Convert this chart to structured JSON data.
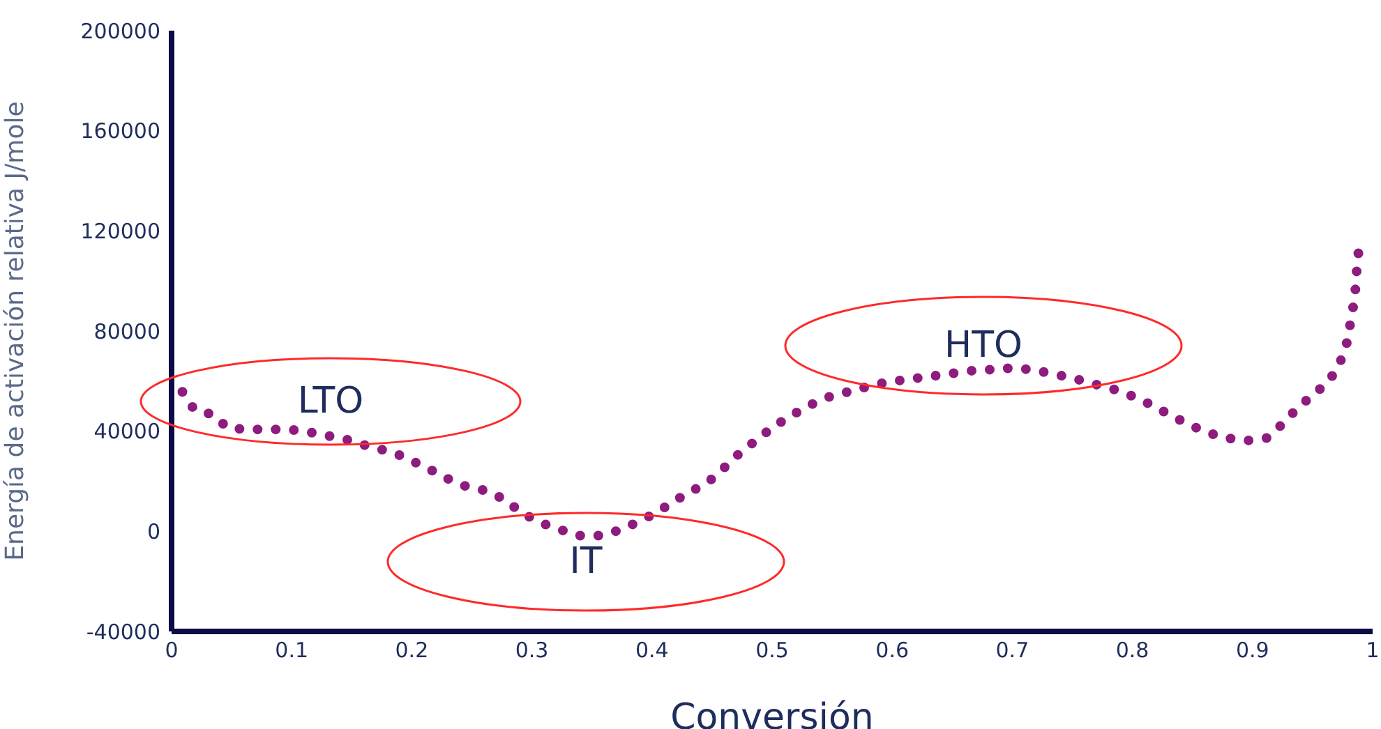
{
  "chart_data": {
    "type": "line",
    "xlabel": "Conversión",
    "ylabel": "Energía de activación relativa J/mole",
    "xlim": [
      0,
      1
    ],
    "xticks": [
      0,
      0.1,
      0.2,
      0.3,
      0.4,
      0.5,
      0.6,
      0.7,
      0.8,
      0.9,
      1
    ],
    "ylim": [
      -40000,
      200000
    ],
    "yticks": [
      -40000,
      0,
      40000,
      80000,
      120000,
      160000,
      200000
    ],
    "grid": false,
    "legend": false,
    "line_style": "dotted",
    "marker": "none",
    "series": [
      {
        "color": "#8e1b7e",
        "x": [
          0.009,
          0.019,
          0.034,
          0.047,
          0.064,
          0.082,
          0.098,
          0.116,
          0.133,
          0.15,
          0.167,
          0.184,
          0.199,
          0.214,
          0.229,
          0.246,
          0.262,
          0.277,
          0.292,
          0.308,
          0.324,
          0.339,
          0.357,
          0.374,
          0.389,
          0.405,
          0.419,
          0.434,
          0.449,
          0.462,
          0.474,
          0.488,
          0.501,
          0.516,
          0.53,
          0.546,
          0.563,
          0.58,
          0.596,
          0.613,
          0.63,
          0.648,
          0.664,
          0.682,
          0.699,
          0.717,
          0.733,
          0.75,
          0.767,
          0.784,
          0.8,
          0.815,
          0.83,
          0.846,
          0.862,
          0.878,
          0.895,
          0.912,
          0.925,
          0.937,
          0.949,
          0.963,
          0.972,
          0.978,
          0.981,
          0.984,
          0.986,
          0.987,
          0.989
        ],
        "values": [
          55700,
          48500,
          46700,
          41200,
          40700,
          40700,
          40700,
          39500,
          37900,
          36200,
          33400,
          31700,
          28400,
          25000,
          21200,
          17800,
          16200,
          12800,
          7200,
          3300,
          600,
          -1700,
          -1700,
          600,
          3900,
          7800,
          12300,
          16200,
          20600,
          26200,
          31700,
          36800,
          41800,
          46200,
          50100,
          53500,
          55700,
          57900,
          59600,
          60700,
          61800,
          62900,
          64100,
          64600,
          65200,
          64600,
          62900,
          61300,
          59000,
          56800,
          54000,
          50700,
          46800,
          42900,
          39500,
          37300,
          36200,
          37300,
          42900,
          49000,
          54000,
          59600,
          66300,
          74100,
          81900,
          90200,
          98000,
          106400,
          114700
        ]
      }
    ],
    "annotations": [
      "LTO",
      "IT",
      "HTO"
    ]
  }
}
